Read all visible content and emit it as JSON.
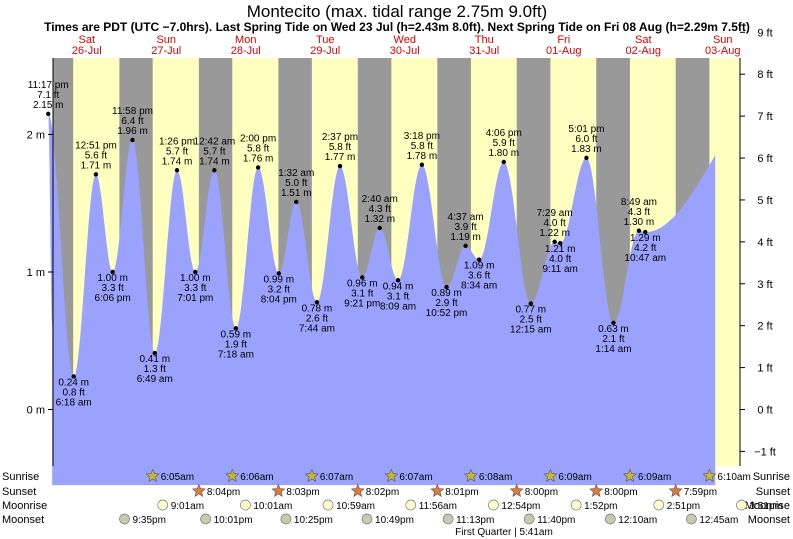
{
  "chart_data": {
    "type": "area",
    "title": "Montecito (max. tidal range 2.75m 9.0ft)",
    "subtitle": "Times are PDT (UTC −7.0hrs). Last Spring Tide on Wed 23 Jul (h=2.43m 8.0ft). Next Spring Tide on Fri 08 Aug (h=2.29m 7.5ft)",
    "days": [
      {
        "top": "Sat",
        "bottom": "26-Jul"
      },
      {
        "top": "Sun",
        "bottom": "27-Jul"
      },
      {
        "top": "Mon",
        "bottom": "28-Jul"
      },
      {
        "top": "Tue",
        "bottom": "29-Jul"
      },
      {
        "top": "Wed",
        "bottom": "30-Jul"
      },
      {
        "top": "Thu",
        "bottom": "31-Jul"
      },
      {
        "top": "Fri",
        "bottom": "01-Aug"
      },
      {
        "top": "Sat",
        "bottom": "02-Aug"
      },
      {
        "top": "Sun",
        "bottom": "03-Aug"
      }
    ],
    "y_left": {
      "unit": "m",
      "ticks": [
        "0 m",
        "1 m",
        "2 m"
      ],
      "range": [
        -0.6,
        2.75
      ]
    },
    "y_right": {
      "unit": "ft",
      "ticks": [
        "−1 ft",
        "0 ft",
        "1 ft",
        "2 ft",
        "3 ft",
        "4 ft",
        "5 ft",
        "6 ft",
        "7 ft",
        "8 ft",
        "9 ft"
      ]
    },
    "tides": [
      {
        "time": "11:17 pm",
        "ft": "7.1 ft",
        "m": "2.15 m",
        "kind": "high",
        "day": -0.06,
        "h": 2.15
      },
      {
        "time": "6:18 am",
        "ft": "0.8 ft",
        "m": "0.24 m",
        "kind": "low",
        "day": 0.26,
        "h": 0.24
      },
      {
        "time": "12:51 pm",
        "ft": "5.6 ft",
        "m": "1.71 m",
        "kind": "high",
        "day": 0.54,
        "h": 1.71
      },
      {
        "time": "6:06 pm",
        "ft": "3.3 ft",
        "m": "1.00 m",
        "kind": "low",
        "day": 0.75,
        "h": 1.0
      },
      {
        "time": "11:58 pm",
        "ft": "6.4 ft",
        "m": "1.96 m",
        "kind": "high",
        "day": 1.0,
        "h": 1.96
      },
      {
        "time": "6:49 am",
        "ft": "1.3 ft",
        "m": "0.41 m",
        "kind": "low",
        "day": 1.28,
        "h": 0.41
      },
      {
        "time": "1:26 pm",
        "ft": "5.7 ft",
        "m": "1.74 m",
        "kind": "high",
        "day": 1.56,
        "h": 1.74
      },
      {
        "time": "7:01 pm",
        "ft": "3.3 ft",
        "m": "1.00 m",
        "kind": "low",
        "day": 1.79,
        "h": 1.0
      },
      {
        "time": "12:42 am",
        "ft": "5.7 ft",
        "m": "1.74 m",
        "kind": "high",
        "day": 2.03,
        "h": 1.74
      },
      {
        "time": "7:18 am",
        "ft": "1.9 ft",
        "m": "0.59 m",
        "kind": "low",
        "day": 2.3,
        "h": 0.59
      },
      {
        "time": "2:00 pm",
        "ft": "5.8 ft",
        "m": "1.76 m",
        "kind": "high",
        "day": 2.58,
        "h": 1.76
      },
      {
        "time": "8:04 pm",
        "ft": "3.2 ft",
        "m": "0.99 m",
        "kind": "low",
        "day": 2.84,
        "h": 0.99
      },
      {
        "time": "1:32 am",
        "ft": "5.0 ft",
        "m": "1.51 m",
        "kind": "high",
        "day": 3.06,
        "h": 1.51
      },
      {
        "time": "7:44 am",
        "ft": "2.6 ft",
        "m": "0.78 m",
        "kind": "low",
        "day": 3.32,
        "h": 0.78
      },
      {
        "time": "2:37 pm",
        "ft": "5.8 ft",
        "m": "1.77 m",
        "kind": "high",
        "day": 3.61,
        "h": 1.77
      },
      {
        "time": "9:21 pm",
        "ft": "3.1 ft",
        "m": "0.96 m",
        "kind": "low",
        "day": 3.89,
        "h": 0.96
      },
      {
        "time": "2:40 am",
        "ft": "4.3 ft",
        "m": "1.32 m",
        "kind": "high",
        "day": 4.11,
        "h": 1.32
      },
      {
        "time": "8:09 am",
        "ft": "3.1 ft",
        "m": "0.94 m",
        "kind": "low",
        "day": 4.34,
        "h": 0.94
      },
      {
        "time": "3:18 pm",
        "ft": "5.8 ft",
        "m": "1.78 m",
        "kind": "high",
        "day": 4.64,
        "h": 1.78
      },
      {
        "time": "10:52 pm",
        "ft": "2.9 ft",
        "m": "0.89 m",
        "kind": "low",
        "day": 4.95,
        "h": 0.89
      },
      {
        "time": "4:37 am",
        "ft": "3.9 ft",
        "m": "1.19 m",
        "kind": "high",
        "day": 5.19,
        "h": 1.19
      },
      {
        "time": "8:34 am",
        "ft": "3.6 ft",
        "m": "1.09 m",
        "kind": "low",
        "day": 5.36,
        "h": 1.09
      },
      {
        "time": "4:06 pm",
        "ft": "5.9 ft",
        "m": "1.80 m",
        "kind": "high",
        "day": 5.67,
        "h": 1.8
      },
      {
        "time": "12:15 am",
        "ft": "2.5 ft",
        "m": "0.77 m",
        "kind": "low",
        "day": 6.01,
        "h": 0.77
      },
      {
        "time": "7:29 am",
        "ft": "4.0 ft",
        "m": "1.22 m",
        "kind": "high",
        "day": 6.31,
        "h": 1.22
      },
      {
        "time": "9:11 am",
        "ft": "4.0 ft",
        "m": "1.21 m",
        "kind": "low",
        "day": 6.38,
        "h": 1.21
      },
      {
        "time": "5:01 pm",
        "ft": "6.0 ft",
        "m": "1.83 m",
        "kind": "high",
        "day": 6.71,
        "h": 1.83
      },
      {
        "time": "1:14 am",
        "ft": "2.1 ft",
        "m": "0.63 m",
        "kind": "low",
        "day": 7.05,
        "h": 0.63
      },
      {
        "time": "8:49 am",
        "ft": "4.3 ft",
        "m": "1.30 m",
        "kind": "high",
        "day": 7.37,
        "h": 1.3
      },
      {
        "time": "10:47 am",
        "ft": "4.2 ft",
        "m": "1.29 m",
        "kind": "low",
        "day": 7.45,
        "h": 1.29
      }
    ],
    "end_level_m": 1.85,
    "day_bands": [
      {
        "sunrise": 0.254,
        "sunset": 0.835
      },
      {
        "sunrise": 0.254,
        "sunset": 0.835
      },
      {
        "sunrise": 0.255,
        "sunset": 0.835
      },
      {
        "sunrise": 0.256,
        "sunset": 0.834
      },
      {
        "sunrise": 0.256,
        "sunset": 0.834
      },
      {
        "sunrise": 0.257,
        "sunset": 0.833
      },
      {
        "sunrise": 0.257,
        "sunset": 0.833
      },
      {
        "sunrise": 0.257,
        "sunset": 0.833
      },
      {
        "sunrise": 0.257,
        "sunset": 0.833
      }
    ],
    "rows": {
      "sunrise_label": "Sunrise",
      "sunset_label": "Sunset",
      "moonrise_label": "Moonrise",
      "moonset_label": "Moonset",
      "sunrise": [
        {
          "day": 1.254,
          "text": "6:05am"
        },
        {
          "day": 2.255,
          "text": "6:06am"
        },
        {
          "day": 3.256,
          "text": "6:07am"
        },
        {
          "day": 4.256,
          "text": "6:07am"
        },
        {
          "day": 5.257,
          "text": "6:08am"
        },
        {
          "day": 6.257,
          "text": "6:09am"
        },
        {
          "day": 7.257,
          "text": "6:09am"
        },
        {
          "day": 8.257,
          "text": "6:10am"
        }
      ],
      "sunset": [
        {
          "day": 1.835,
          "text": "8:04pm"
        },
        {
          "day": 2.835,
          "text": "8:03pm"
        },
        {
          "day": 3.834,
          "text": "8:02pm"
        },
        {
          "day": 4.834,
          "text": "8:01pm"
        },
        {
          "day": 5.833,
          "text": "8:00pm"
        },
        {
          "day": 6.833,
          "text": "8:00pm"
        },
        {
          "day": 7.833,
          "text": "7:59pm"
        }
      ],
      "moonrise": [
        {
          "day": 1.38,
          "text": "9:01am"
        },
        {
          "day": 2.42,
          "text": "10:01am"
        },
        {
          "day": 3.46,
          "text": "10:59am"
        },
        {
          "day": 4.5,
          "text": "11:56am"
        },
        {
          "day": 5.54,
          "text": "12:54pm"
        },
        {
          "day": 6.58,
          "text": "1:52pm"
        },
        {
          "day": 7.62,
          "text": "2:51pm"
        },
        {
          "day": 8.66,
          "text": "3:51pm"
        }
      ],
      "moonset": [
        {
          "day": 0.9,
          "text": "9:35pm"
        },
        {
          "day": 1.92,
          "text": "10:01pm"
        },
        {
          "day": 2.93,
          "text": "10:25pm"
        },
        {
          "day": 3.95,
          "text": "10:49pm"
        },
        {
          "day": 4.97,
          "text": "11:13pm"
        },
        {
          "day": 5.99,
          "text": "11:40pm"
        },
        {
          "day": 7.01,
          "text": "12:10am"
        },
        {
          "day": 8.03,
          "text": "12:45am"
        }
      ]
    },
    "moon_phase": "First Quarter | 5:41am",
    "colors": {
      "night": "#999999",
      "day": "#ffffc0",
      "water": "#9aa2fd",
      "day_label": "#e00000",
      "sun_star": "#c8b830",
      "sunset_star": "#e07b39",
      "moonrise": "#ffffd0",
      "moonset": "#c9c9b0"
    }
  }
}
